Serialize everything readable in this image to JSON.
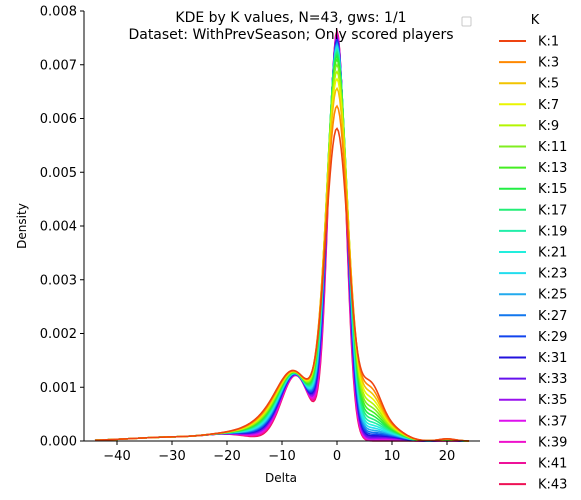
{
  "chart_data": {
    "type": "line",
    "title_line1": "KDE by K values, N=43, gws: 1/1",
    "title_line2": "Dataset: WithPrevSeason; Only scored players",
    "xlabel": "Delta",
    "ylabel": "Density",
    "xlim": [
      -46,
      26
    ],
    "ylim": [
      0,
      0.008
    ],
    "x_ticks": [
      -40,
      -30,
      -20,
      -10,
      0,
      10,
      20
    ],
    "x_tick_labels": [
      "−40",
      "−30",
      "−20",
      "−10",
      "0",
      "10",
      "20"
    ],
    "y_ticks": [
      0,
      0.001,
      0.002,
      0.003,
      0.004,
      0.005,
      0.006,
      0.007,
      0.008
    ],
    "y_tick_labels": [
      "0.000",
      "0.001",
      "0.002",
      "0.003",
      "0.004",
      "0.005",
      "0.006",
      "0.007",
      "0.008"
    ],
    "legend_title": "K",
    "legend_position": "outside right",
    "series": [
      {
        "name": "K:1",
        "color": "#ee4411",
        "peak": 0.00575
      },
      {
        "name": "K:3",
        "color": "#ff8800",
        "peak": 0.00617
      },
      {
        "name": "K:5",
        "color": "#f2c400",
        "peak": 0.0065
      },
      {
        "name": "K:7",
        "color": "#eaf500",
        "peak": 0.00668
      },
      {
        "name": "K:9",
        "color": "#b4f500",
        "peak": 0.00682
      },
      {
        "name": "K:11",
        "color": "#80ee20",
        "peak": 0.00695
      },
      {
        "name": "K:13",
        "color": "#44ee22",
        "peak": 0.00705
      },
      {
        "name": "K:15",
        "color": "#22ee44",
        "peak": 0.00712
      },
      {
        "name": "K:17",
        "color": "#22ee77",
        "peak": 0.00718
      },
      {
        "name": "K:19",
        "color": "#22eeaa",
        "peak": 0.00722
      },
      {
        "name": "K:21",
        "color": "#22eedd",
        "peak": 0.00726
      },
      {
        "name": "K:23",
        "color": "#22ddee",
        "peak": 0.0073
      },
      {
        "name": "K:25",
        "color": "#22aaee",
        "peak": 0.00734
      },
      {
        "name": "K:27",
        "color": "#1177ee",
        "peak": 0.00737
      },
      {
        "name": "K:29",
        "color": "#1144ee",
        "peak": 0.0074
      },
      {
        "name": "K:31",
        "color": "#2211dd",
        "peak": 0.00743
      },
      {
        "name": "K:33",
        "color": "#6611ee",
        "peak": 0.00746
      },
      {
        "name": "K:35",
        "color": "#9911ee",
        "peak": 0.00749
      },
      {
        "name": "K:37",
        "color": "#dd11ee",
        "peak": 0.00752
      },
      {
        "name": "K:39",
        "color": "#ee11cc",
        "peak": 0.00755
      },
      {
        "name": "K:41",
        "color": "#ee1199",
        "peak": 0.00758
      },
      {
        "name": "K:43",
        "color": "#ee1155",
        "peak": 0.00761
      }
    ]
  }
}
